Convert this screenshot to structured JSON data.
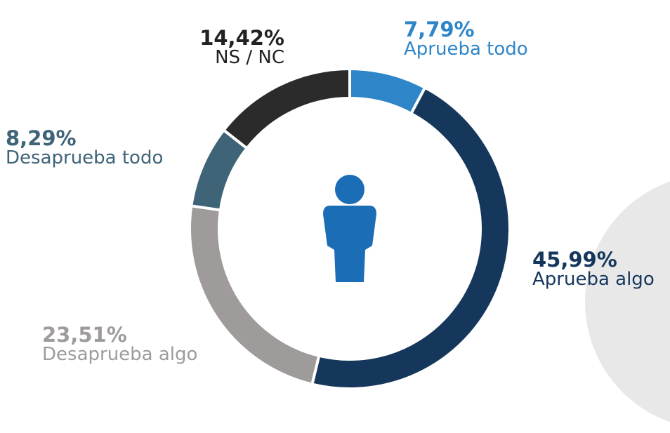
{
  "chart_data": {
    "type": "pie",
    "donut": true,
    "categories": [
      "Aprueba todo",
      "Aprueba algo",
      "Desaprueba algo",
      "Desaprueba todo",
      "NS / NC"
    ],
    "values": [
      7.79,
      45.99,
      23.51,
      8.29,
      14.42
    ],
    "value_labels": [
      "7,79%",
      "45,99%",
      "23,51%",
      "8,29%",
      "14,42%"
    ],
    "colors": [
      "#2e86c8",
      "#15375c",
      "#9e9b9a",
      "#3f6478",
      "#2b2b2b"
    ]
  }
}
